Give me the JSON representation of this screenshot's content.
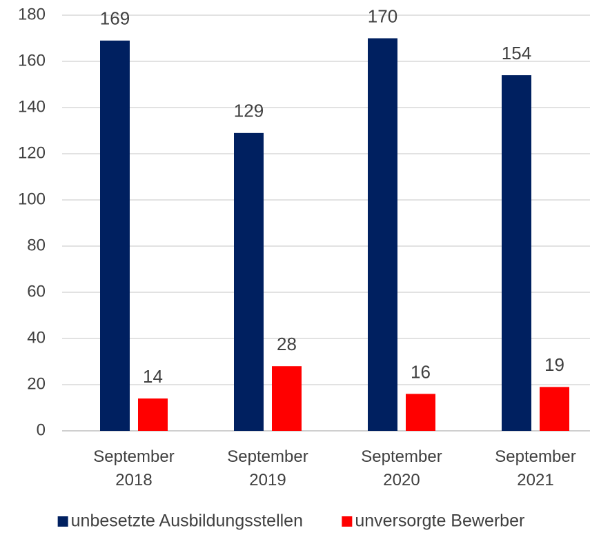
{
  "chart_data": {
    "type": "bar",
    "categories": [
      "September 2018",
      "September 2019",
      "September 2020",
      "September 2021"
    ],
    "series": [
      {
        "name": "unbesetzte Ausbildungsstellen",
        "color": "#002060",
        "values": [
          169,
          129,
          170,
          154
        ]
      },
      {
        "name": "unversorgte Bewerber",
        "color": "#ff0000",
        "values": [
          14,
          28,
          16,
          19
        ]
      }
    ],
    "ylim": [
      0,
      180
    ],
    "yticks": [
      0,
      20,
      40,
      60,
      80,
      100,
      120,
      140,
      160,
      180
    ],
    "grid": true,
    "legend": "bottom"
  }
}
